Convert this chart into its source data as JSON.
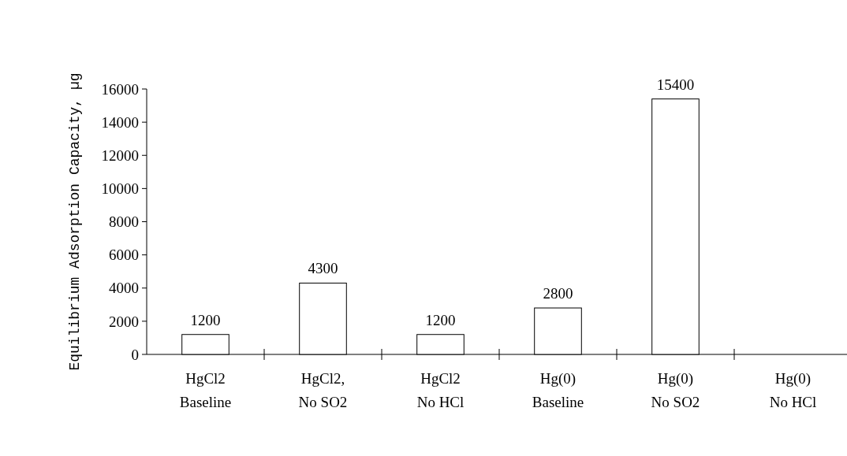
{
  "chart_data": {
    "type": "bar",
    "ylabel": "Equilibrium Adsorption Capacity, µg",
    "categories": [
      "HgCl2\nBaseline",
      "HgCl2,\nNo SO2",
      "HgCl2\nNo HCl",
      "Hg(0)\nBaseline",
      "Hg(0)\nNo SO2",
      "Hg(0)\nNo HCl"
    ],
    "values": [
      1200,
      4300,
      1200,
      2800,
      15400,
      null
    ],
    "color": "#ffffff",
    "ylim": [
      0,
      16000
    ],
    "yticks": [
      0,
      2000,
      4000,
      6000,
      8000,
      10000,
      12000,
      14000,
      16000
    ],
    "data_labels": true,
    "grid": false
  }
}
